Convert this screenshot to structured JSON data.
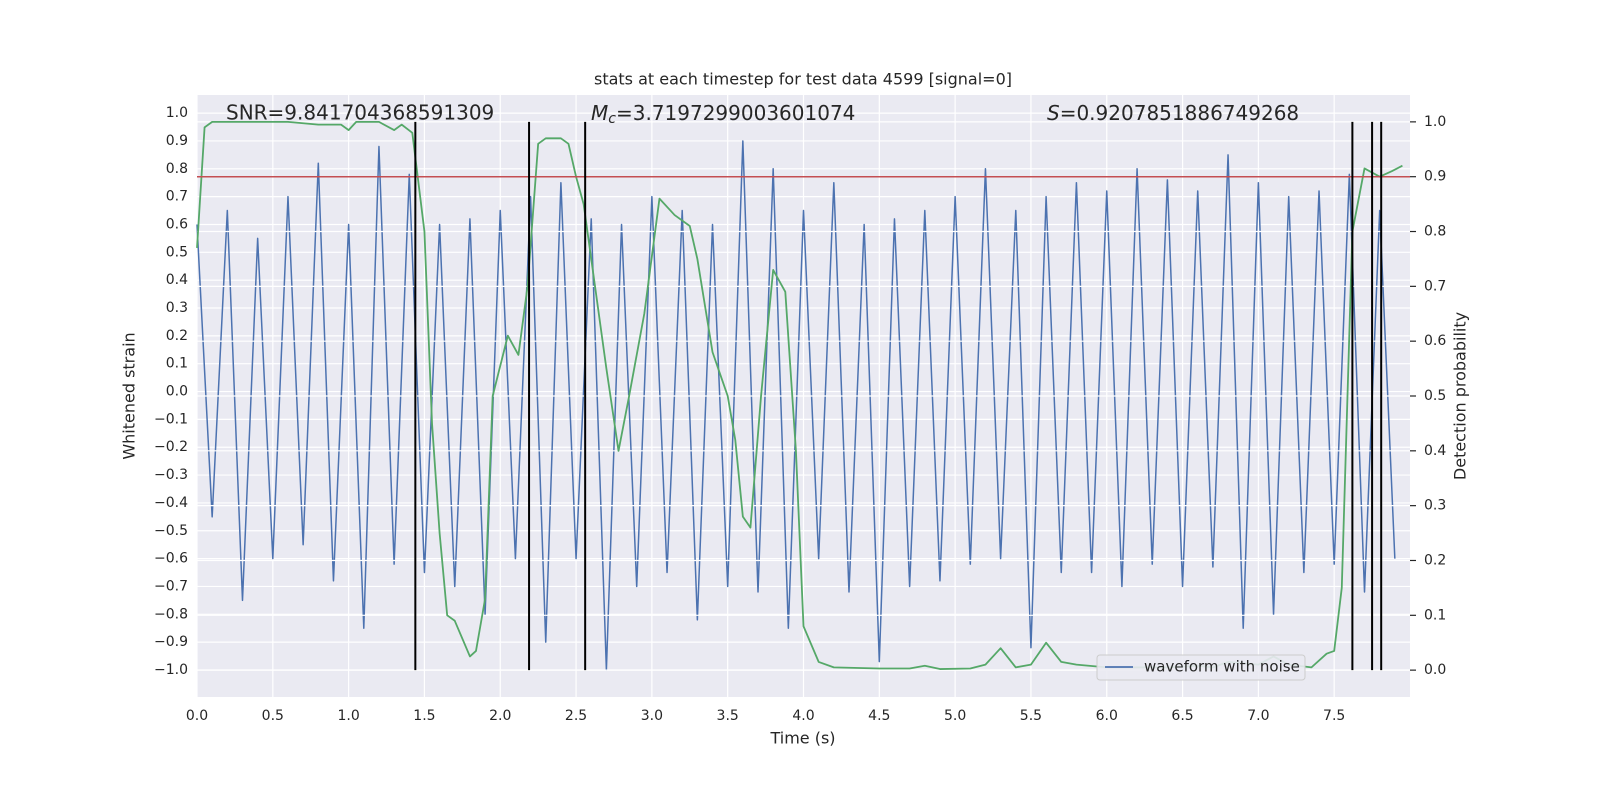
{
  "chart_data": {
    "type": "line",
    "title": "stats at each timestep for test data 4599 [signal=0]",
    "xlabel": "Time (s)",
    "ylabel": "Whitened strain",
    "y2label": "Detection probability",
    "annotations": [
      {
        "text": "SNR=9.841704368591309"
      },
      {
        "symbol": "M",
        "subscript": "c",
        "text": "=3.7197299003601074"
      },
      {
        "symbol": "S",
        "text": "=0.9207851886749268"
      }
    ],
    "xlim": [
      0,
      8.0
    ],
    "ylim": [
      -1.097,
      1.065
    ],
    "y2lim": [
      -0.049,
      1.049
    ],
    "xticks": [
      {
        "value": 0,
        "label": "0.0"
      },
      0.5,
      {
        "value": 1,
        "label": "1.0"
      },
      1.5,
      {
        "value": 2,
        "label": "2.0"
      },
      2.5,
      {
        "value": 3,
        "label": "3.0"
      },
      3.5,
      {
        "value": 4,
        "label": "4.0"
      },
      4.5,
      {
        "value": 5,
        "label": "5.0"
      },
      5.5,
      {
        "value": 6,
        "label": "6.0"
      },
      6.5,
      {
        "value": 7,
        "label": "7.0"
      },
      7.5
    ],
    "yticks": [
      {
        "value": -1,
        "label": "−1.0"
      },
      {
        "value": -0.9,
        "label": "−0.9"
      },
      {
        "value": -0.8,
        "label": "−0.8"
      },
      {
        "value": -0.7,
        "label": "−0.7"
      },
      {
        "value": -0.6,
        "label": "−0.6"
      },
      {
        "value": -0.5,
        "label": "−0.5"
      },
      {
        "value": -0.4,
        "label": "−0.4"
      },
      {
        "value": -0.3,
        "label": "−0.3"
      },
      {
        "value": -0.2,
        "label": "−0.2"
      },
      {
        "value": -0.1,
        "label": "−0.1"
      },
      {
        "value": 0,
        "label": "0.0"
      },
      0.1,
      0.2,
      0.3,
      0.4,
      0.5,
      0.6,
      0.7,
      0.8,
      0.9,
      {
        "value": 1,
        "label": "1.0"
      }
    ],
    "y2ticks": [
      {
        "value": 0,
        "label": "0.0"
      },
      0.1,
      0.2,
      0.3,
      0.4,
      0.5,
      0.6,
      0.7,
      0.8,
      0.9,
      {
        "value": 1,
        "label": "1.0"
      }
    ],
    "grid": true,
    "legend": "lower right",
    "threshold": 0.9,
    "threshold_color": "#c44e52",
    "vlines": [
      1.44,
      2.19,
      2.56,
      7.62,
      7.75,
      7.81
    ],
    "vline_range": [
      0,
      1
    ],
    "vline_color": "#000000",
    "series": [
      {
        "name": "waveform with noise",
        "color": "#4c72b0",
        "axis": "y",
        "x": [
          0.0,
          0.1,
          0.2,
          0.3,
          0.4,
          0.5,
          0.6,
          0.7,
          0.8,
          0.9,
          1.0,
          1.1,
          1.2,
          1.3,
          1.4,
          1.5,
          1.6,
          1.7,
          1.8,
          1.9,
          2.0,
          2.1,
          2.2,
          2.3,
          2.4,
          2.5,
          2.6,
          2.7,
          2.8,
          2.9,
          3.0,
          3.1,
          3.2,
          3.3,
          3.4,
          3.5,
          3.6,
          3.7,
          3.8,
          3.9,
          4.0,
          4.1,
          4.2,
          4.3,
          4.4,
          4.5,
          4.6,
          4.7,
          4.8,
          4.9,
          5.0,
          5.1,
          5.2,
          5.3,
          5.4,
          5.5,
          5.6,
          5.7,
          5.8,
          5.9,
          6.0,
          6.1,
          6.2,
          6.3,
          6.4,
          6.5,
          6.6,
          6.7,
          6.8,
          6.9,
          7.0,
          7.1,
          7.2,
          7.3,
          7.4,
          7.5,
          7.6,
          7.7,
          7.8,
          7.9
        ],
        "values": [
          0.6,
          -0.45,
          0.65,
          -0.75,
          0.55,
          -0.6,
          0.7,
          -0.55,
          0.82,
          -0.68,
          0.6,
          -0.85,
          0.88,
          -0.62,
          0.78,
          -0.65,
          0.6,
          -0.7,
          0.62,
          -0.8,
          0.65,
          -0.6,
          0.7,
          -0.9,
          0.75,
          -0.6,
          0.62,
          -1.0,
          0.6,
          -0.7,
          0.7,
          -0.65,
          0.65,
          -0.82,
          0.6,
          -0.7,
          0.9,
          -0.72,
          0.8,
          -0.85,
          0.65,
          -0.6,
          0.75,
          -0.72,
          0.6,
          -0.97,
          0.62,
          -0.7,
          0.65,
          -0.68,
          0.7,
          -0.62,
          0.8,
          -0.6,
          0.65,
          -0.92,
          0.7,
          -0.65,
          0.75,
          -0.65,
          0.72,
          -0.7,
          0.8,
          -0.62,
          0.76,
          -0.7,
          0.72,
          -0.63,
          0.85,
          -0.85,
          0.75,
          -0.8,
          0.7,
          -0.65,
          0.72,
          -0.62,
          0.78,
          -0.72,
          0.65,
          -0.6
        ]
      },
      {
        "color": "#55a868",
        "axis": "y2",
        "x": [
          0,
          0.05,
          0.1,
          0.2,
          0.4,
          0.6,
          0.8,
          0.95,
          1.0,
          1.05,
          1.15,
          1.2,
          1.3,
          1.35,
          1.42,
          1.5,
          1.55,
          1.6,
          1.65,
          1.7,
          1.8,
          1.84,
          1.9,
          1.95,
          2.05,
          2.12,
          2.18,
          2.25,
          2.3,
          2.4,
          2.45,
          2.5,
          2.55,
          2.6,
          2.7,
          2.78,
          2.85,
          2.95,
          3.05,
          3.15,
          3.25,
          3.3,
          3.4,
          3.5,
          3.55,
          3.6,
          3.65,
          3.72,
          3.8,
          3.88,
          3.95,
          4.0,
          4.1,
          4.2,
          4.5,
          4.7,
          4.8,
          4.9,
          5.1,
          5.2,
          5.3,
          5.4,
          5.5,
          5.6,
          5.7,
          5.8,
          6.0,
          6.4,
          6.6,
          6.7,
          6.8,
          7.0,
          7.1,
          7.2,
          7.35,
          7.45,
          7.5,
          7.55,
          7.62,
          7.7,
          7.8,
          7.88,
          7.95
        ],
        "values": [
          0.77,
          0.99,
          1.0,
          1.0,
          1.0,
          1.0,
          0.995,
          0.995,
          0.985,
          1.0,
          1.0,
          1.0,
          0.985,
          0.995,
          0.98,
          0.8,
          0.45,
          0.25,
          0.1,
          0.09,
          0.025,
          0.035,
          0.13,
          0.5,
          0.61,
          0.575,
          0.7,
          0.96,
          0.97,
          0.97,
          0.96,
          0.9,
          0.85,
          0.75,
          0.55,
          0.4,
          0.5,
          0.65,
          0.86,
          0.83,
          0.81,
          0.75,
          0.58,
          0.5,
          0.42,
          0.28,
          0.26,
          0.5,
          0.73,
          0.69,
          0.4,
          0.08,
          0.015,
          0.005,
          0.003,
          0.003,
          0.008,
          0.002,
          0.003,
          0.01,
          0.04,
          0.005,
          0.01,
          0.05,
          0.015,
          0.01,
          0.005,
          0.005,
          0.008,
          0.005,
          0.015,
          0.01,
          0.025,
          0.01,
          0.005,
          0.03,
          0.035,
          0.15,
          0.8,
          0.915,
          0.9,
          0.91,
          0.92
        ]
      }
    ]
  }
}
